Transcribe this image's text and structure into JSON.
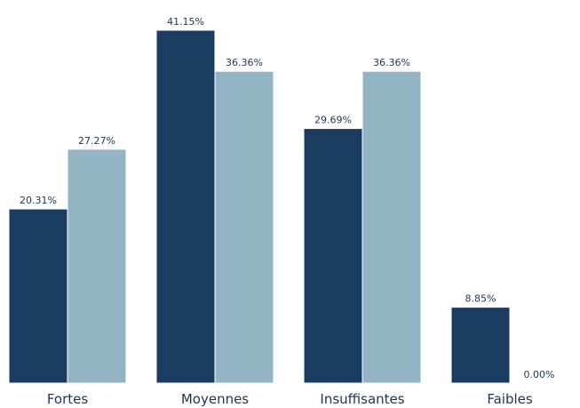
{
  "chart_data": {
    "type": "bar",
    "categories": [
      "Fortes",
      "Moyennes",
      "Insuffisantes",
      "Faibles"
    ],
    "series": [
      {
        "values": [
          20.31,
          41.15,
          29.69,
          8.85
        ],
        "color": "#1a3c61"
      },
      {
        "values": [
          27.27,
          36.36,
          36.36,
          0.0
        ],
        "color": "#92b4c4"
      }
    ],
    "value_labels": [
      [
        "20.31%",
        "41.15%",
        "29.69%",
        "8.85%"
      ],
      [
        "27.27%",
        "36.36%",
        "36.36%",
        "0.00%"
      ]
    ],
    "title": "",
    "xlabel": "",
    "ylabel": "",
    "ylim": [
      0,
      41.15
    ],
    "grid": false,
    "legend": "none"
  }
}
